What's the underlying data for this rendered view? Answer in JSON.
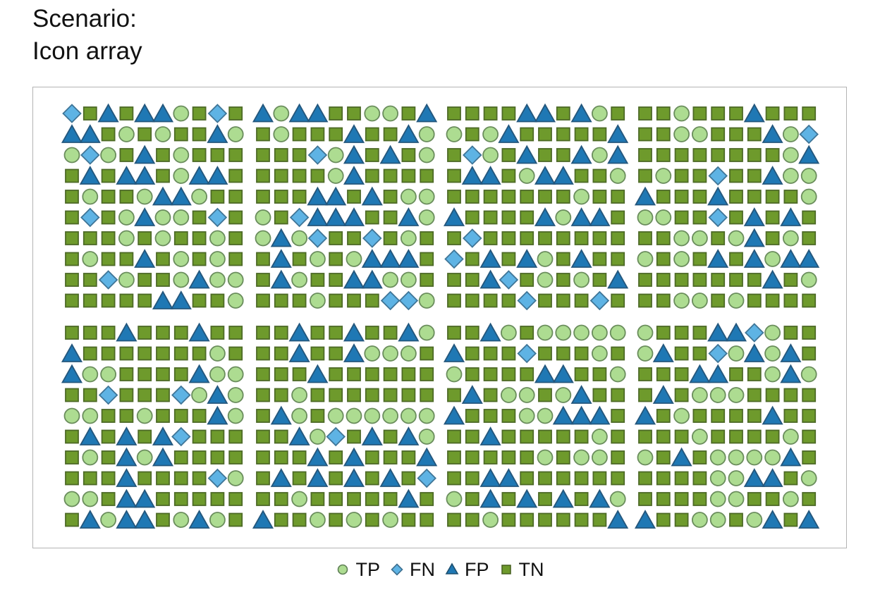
{
  "title_lines": [
    "Scenario:",
    "Icon array"
  ],
  "legend": [
    {
      "key": "TP",
      "label": "TP",
      "shape": "circle",
      "color": "#addc91"
    },
    {
      "key": "FN",
      "label": "FN",
      "shape": "diamond",
      "color": "#5eb3e4"
    },
    {
      "key": "FP",
      "label": "FP",
      "shape": "triangle",
      "color": "#1f78b4"
    },
    {
      "key": "TN",
      "label": "TN",
      "shape": "square",
      "color": "#6e9a2c"
    }
  ],
  "chart_data": {
    "type": "icon-array",
    "categories": [
      "TP",
      "FN",
      "FP",
      "TN"
    ],
    "colors": {
      "TP": "#addc91",
      "FN": "#5eb3e4",
      "FP": "#1f78b4",
      "TN": "#6e9a2c"
    },
    "blocks_layout": "2 rows x 4 columns of 10x10 icon blocks",
    "blocks": [
      [
        "DSTSTTCSDS",
        "TTSCSCSSTC",
        "CDCSTSCSSS",
        "STSTTSCTTS",
        "SCSSCTTCSS",
        "SDSCTCCSDS",
        "SSSCSCSSCS",
        "SCSSTSCSCS",
        "SSDCSSCTCC",
        "SSSSSTTSSC"
      ],
      [
        "TCTTSSCCST",
        "SCSSSTSSTC",
        "SSSDCTSTSC",
        "SSSSCTSSSS",
        "SSSTTSTSCC",
        "CSDTTTSSTC",
        "CTCDSSDSCS",
        "STSCSCTTTS",
        "STCSSTTCCS",
        "SSSCSSSDDC"
      ],
      [
        "SSSSTTSTCS",
        "CSCTSSSSST",
        "SDCSTSSTCT",
        "STTSCTTSSC",
        "SSSSSSSCSS",
        "TSSSSTCTTS",
        "SDSSSSSSSS",
        "DSTSTCSTSS",
        "SSTDSCSCST",
        "SSSSDSSSDS"
      ],
      [
        "SSCSSSTSSS",
        "SSCCSSSTCD",
        "SSSSSSSSCT",
        "SCSSDSSTCC",
        "TSSSTSSSSC",
        "CCSSDSTSTS",
        "SSCCSCTSCS",
        "CSCSTSTCTT",
        "SSSSSSSTSC",
        "SSCCSCSSSS"
      ],
      [
        "SSSTSSSTSS",
        "TSSSSSSSCS",
        "TCCSSSSTCC",
        "SSDSSSDCTC",
        "CCSSCSSSTC",
        "STSTSTDSSS",
        "SCSTCTSSSS",
        "SSSTSSSSDC",
        "CCSTTSSSSS",
        "STCTTSCTCS"
      ],
      [
        "SSTSSTSSTC",
        "SSTSSTCCCS",
        "SSSTSSSSSS",
        "SSCSSSSSSS",
        "STCSCCCCCC",
        "SSTCDSTSTC",
        "SSSTSTSSST",
        "STSTSTSTSD",
        "SSCSSSSSTS",
        "TSSCSCSCSS"
      ],
      [
        "SSTCSCCCCC",
        "TSSSDSSSCS",
        "CSSSSTTSSC",
        "STSCCSCTSS",
        "TSSSCCTTTS",
        "SSTSSSSSCS",
        "SSSSSCSCCS",
        "SSTTSSSSSS",
        "CSTSTSTSTC",
        "SSCSSSSSST"
      ],
      [
        "CSSSTTDCSS",
        "CTSSDCTCTS",
        "SSSTTSSCTC",
        "STSCCCSSSS",
        "TSCSSSSTSS",
        "SSSCSSSSCS",
        "CSTSCCCCTS",
        "SSSSCCTTSC",
        "SSSSCCSSCS",
        "TSSCCSCTST"
      ]
    ]
  }
}
